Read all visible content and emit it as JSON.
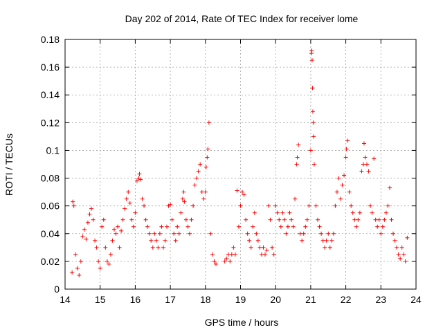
{
  "chart_data": {
    "type": "scatter",
    "title": "Day 202 of 2014, Rate Of TEC Index for receiver lome",
    "xlabel": "GPS time / hours",
    "ylabel": "ROTI / TECUs",
    "xlim": [
      14,
      24
    ],
    "ylim": [
      0,
      0.18
    ],
    "xticks": [
      14,
      15,
      16,
      17,
      18,
      19,
      20,
      21,
      22,
      23,
      24
    ],
    "yticks": [
      0,
      0.02,
      0.04,
      0.06,
      0.08,
      0.1,
      0.12,
      0.14,
      0.16,
      0.18
    ],
    "xtick_labels": [
      "14",
      "15",
      "16",
      "17",
      "18",
      "19",
      "20",
      "21",
      "22",
      "23",
      "24"
    ],
    "ytick_labels": [
      "0",
      "0.02",
      "0.04",
      "0.06",
      "0.08",
      "0.1",
      "0.12",
      "0.14",
      "0.16",
      "0.18"
    ],
    "grid": true,
    "marker": "+",
    "color": "#ff0000",
    "series": [
      {
        "name": "ROTI",
        "points": [
          [
            14.2,
            0.012
          ],
          [
            14.22,
            0.063
          ],
          [
            14.25,
            0.06
          ],
          [
            14.3,
            0.025
          ],
          [
            14.35,
            0.015
          ],
          [
            14.4,
            0.01
          ],
          [
            14.45,
            0.02
          ],
          [
            14.5,
            0.038
          ],
          [
            14.55,
            0.043
          ],
          [
            14.6,
            0.036
          ],
          [
            14.65,
            0.048
          ],
          [
            14.7,
            0.054
          ],
          [
            14.75,
            0.058
          ],
          [
            14.8,
            0.05
          ],
          [
            14.85,
            0.035
          ],
          [
            14.9,
            0.03
          ],
          [
            14.95,
            0.02
          ],
          [
            15.0,
            0.015
          ],
          [
            15.05,
            0.045
          ],
          [
            15.1,
            0.05
          ],
          [
            15.15,
            0.03
          ],
          [
            15.2,
            0.02
          ],
          [
            15.25,
            0.018
          ],
          [
            15.3,
            0.025
          ],
          [
            15.35,
            0.035
          ],
          [
            15.4,
            0.043
          ],
          [
            15.45,
            0.04
          ],
          [
            15.5,
            0.045
          ],
          [
            15.55,
            0.03
          ],
          [
            15.6,
            0.042
          ],
          [
            15.65,
            0.05
          ],
          [
            15.7,
            0.058
          ],
          [
            15.75,
            0.065
          ],
          [
            15.8,
            0.07
          ],
          [
            15.85,
            0.062
          ],
          [
            15.9,
            0.05
          ],
          [
            15.95,
            0.045
          ],
          [
            16.0,
            0.055
          ],
          [
            16.05,
            0.078
          ],
          [
            16.1,
            0.08
          ],
          [
            16.12,
            0.083
          ],
          [
            16.15,
            0.079
          ],
          [
            16.2,
            0.065
          ],
          [
            16.25,
            0.06
          ],
          [
            16.3,
            0.05
          ],
          [
            16.35,
            0.045
          ],
          [
            16.4,
            0.04
          ],
          [
            16.45,
            0.035
          ],
          [
            16.5,
            0.03
          ],
          [
            16.55,
            0.04
          ],
          [
            16.6,
            0.035
          ],
          [
            16.65,
            0.03
          ],
          [
            16.7,
            0.04
          ],
          [
            16.75,
            0.045
          ],
          [
            16.8,
            0.03
          ],
          [
            16.85,
            0.035
          ],
          [
            16.9,
            0.045
          ],
          [
            16.95,
            0.06
          ],
          [
            17.0,
            0.061
          ],
          [
            17.05,
            0.05
          ],
          [
            17.1,
            0.04
          ],
          [
            17.15,
            0.035
          ],
          [
            17.2,
            0.045
          ],
          [
            17.25,
            0.04
          ],
          [
            17.3,
            0.055
          ],
          [
            17.35,
            0.065
          ],
          [
            17.38,
            0.07
          ],
          [
            17.4,
            0.063
          ],
          [
            17.45,
            0.05
          ],
          [
            17.5,
            0.045
          ],
          [
            17.55,
            0.04
          ],
          [
            17.6,
            0.05
          ],
          [
            17.65,
            0.06
          ],
          [
            17.7,
            0.075
          ],
          [
            17.75,
            0.08
          ],
          [
            17.8,
            0.085
          ],
          [
            17.85,
            0.09
          ],
          [
            17.9,
            0.07
          ],
          [
            17.95,
            0.065
          ],
          [
            18.0,
            0.07
          ],
          [
            18.02,
            0.088
          ],
          [
            18.05,
            0.095
          ],
          [
            18.07,
            0.101
          ],
          [
            18.1,
            0.12
          ],
          [
            18.15,
            0.04
          ],
          [
            18.2,
            0.025
          ],
          [
            18.25,
            0.02
          ],
          [
            18.3,
            0.018
          ],
          [
            18.55,
            0.02
          ],
          [
            18.6,
            0.022
          ],
          [
            18.65,
            0.025
          ],
          [
            18.7,
            0.02
          ],
          [
            18.75,
            0.025
          ],
          [
            18.8,
            0.03
          ],
          [
            18.85,
            0.025
          ],
          [
            18.9,
            0.071
          ],
          [
            18.95,
            0.045
          ],
          [
            19.0,
            0.06
          ],
          [
            19.05,
            0.07
          ],
          [
            19.1,
            0.068
          ],
          [
            19.15,
            0.05
          ],
          [
            19.2,
            0.04
          ],
          [
            19.25,
            0.035
          ],
          [
            19.3,
            0.03
          ],
          [
            19.35,
            0.045
          ],
          [
            19.4,
            0.055
          ],
          [
            19.45,
            0.04
          ],
          [
            19.5,
            0.035
          ],
          [
            19.55,
            0.03
          ],
          [
            19.6,
            0.025
          ],
          [
            19.65,
            0.03
          ],
          [
            19.7,
            0.025
          ],
          [
            19.75,
            0.028
          ],
          [
            19.8,
            0.06
          ],
          [
            19.85,
            0.05
          ],
          [
            19.9,
            0.03
          ],
          [
            19.95,
            0.025
          ],
          [
            20.0,
            0.06
          ],
          [
            20.05,
            0.055
          ],
          [
            20.1,
            0.05
          ],
          [
            20.15,
            0.045
          ],
          [
            20.2,
            0.055
          ],
          [
            20.25,
            0.05
          ],
          [
            20.3,
            0.04
          ],
          [
            20.35,
            0.045
          ],
          [
            20.4,
            0.055
          ],
          [
            20.45,
            0.05
          ],
          [
            20.5,
            0.045
          ],
          [
            20.55,
            0.065
          ],
          [
            20.6,
            0.09
          ],
          [
            20.62,
            0.095
          ],
          [
            20.65,
            0.104
          ],
          [
            20.7,
            0.04
          ],
          [
            20.75,
            0.035
          ],
          [
            20.8,
            0.04
          ],
          [
            20.85,
            0.045
          ],
          [
            20.9,
            0.05
          ],
          [
            20.95,
            0.06
          ],
          [
            21.0,
            0.1
          ],
          [
            21.02,
            0.17
          ],
          [
            21.03,
            0.172
          ],
          [
            21.04,
            0.165
          ],
          [
            21.05,
            0.145
          ],
          [
            21.06,
            0.128
          ],
          [
            21.07,
            0.12
          ],
          [
            21.08,
            0.11
          ],
          [
            21.1,
            0.09
          ],
          [
            21.15,
            0.06
          ],
          [
            21.2,
            0.05
          ],
          [
            21.25,
            0.045
          ],
          [
            21.3,
            0.04
          ],
          [
            21.35,
            0.035
          ],
          [
            21.4,
            0.03
          ],
          [
            21.45,
            0.035
          ],
          [
            21.5,
            0.04
          ],
          [
            21.55,
            0.03
          ],
          [
            21.6,
            0.035
          ],
          [
            21.65,
            0.04
          ],
          [
            21.7,
            0.06
          ],
          [
            21.75,
            0.07
          ],
          [
            21.8,
            0.08
          ],
          [
            21.85,
            0.065
          ],
          [
            21.9,
            0.075
          ],
          [
            21.95,
            0.082
          ],
          [
            22.0,
            0.095
          ],
          [
            22.02,
            0.101
          ],
          [
            22.05,
            0.107
          ],
          [
            22.1,
            0.07
          ],
          [
            22.15,
            0.06
          ],
          [
            22.2,
            0.055
          ],
          [
            22.25,
            0.05
          ],
          [
            22.3,
            0.045
          ],
          [
            22.35,
            0.05
          ],
          [
            22.4,
            0.055
          ],
          [
            22.45,
            0.085
          ],
          [
            22.5,
            0.09
          ],
          [
            22.52,
            0.105
          ],
          [
            22.55,
            0.095
          ],
          [
            22.6,
            0.09
          ],
          [
            22.65,
            0.085
          ],
          [
            22.7,
            0.06
          ],
          [
            22.75,
            0.055
          ],
          [
            22.8,
            0.094
          ],
          [
            22.85,
            0.05
          ],
          [
            22.9,
            0.045
          ],
          [
            22.95,
            0.05
          ],
          [
            23.0,
            0.04
          ],
          [
            23.05,
            0.045
          ],
          [
            23.1,
            0.05
          ],
          [
            23.15,
            0.055
          ],
          [
            23.2,
            0.06
          ],
          [
            23.25,
            0.073
          ],
          [
            23.3,
            0.05
          ],
          [
            23.35,
            0.04
          ],
          [
            23.4,
            0.035
          ],
          [
            23.45,
            0.03
          ],
          [
            23.5,
            0.025
          ],
          [
            23.55,
            0.022
          ],
          [
            23.6,
            0.03
          ],
          [
            23.65,
            0.025
          ],
          [
            23.7,
            0.02
          ],
          [
            23.75,
            0.037
          ]
        ]
      }
    ]
  }
}
